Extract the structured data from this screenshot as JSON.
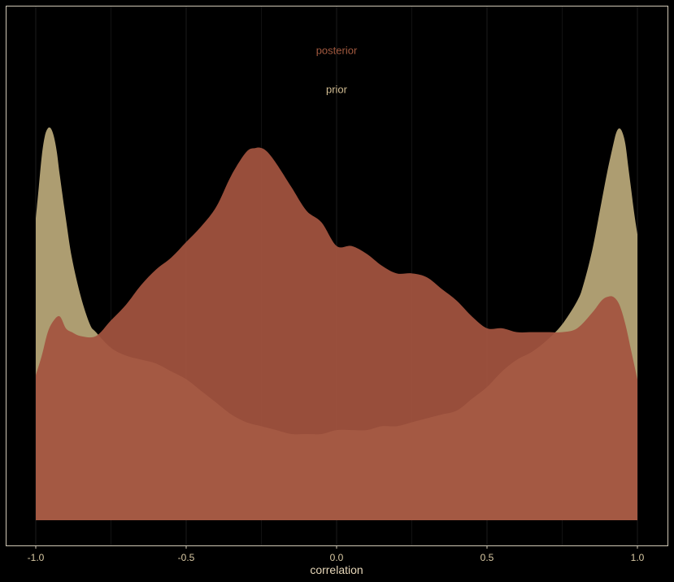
{
  "chart_data": {
    "type": "area",
    "xlabel": "correlation",
    "ylabel": "",
    "xlim": [
      -1.0,
      1.0
    ],
    "ylim": [
      0,
      1.0
    ],
    "x_ticks": [
      -1.0,
      -0.5,
      0.0,
      0.5,
      1.0
    ],
    "x_tick_labels": [
      "-1.0",
      "-0.5",
      "0.0",
      "0.5",
      "1.0"
    ],
    "grid_minor": [
      -0.75,
      -0.25,
      0.25,
      0.75
    ],
    "grid": true,
    "legend": "none",
    "annotations": [
      {
        "text": "posterior",
        "x": 0.0,
        "y": 1.19,
        "color": "#a1593f"
      },
      {
        "text": "prior",
        "x": 0.0,
        "y": 1.09,
        "color": "#d2bd93"
      }
    ],
    "series": [
      {
        "name": "prior",
        "color": "#b3a275",
        "opacity": 0.97,
        "x": [
          -1.0,
          -0.99,
          -0.98,
          -0.97,
          -0.96,
          -0.95,
          -0.94,
          -0.93,
          -0.92,
          -0.9,
          -0.88,
          -0.85,
          -0.82,
          -0.8,
          -0.75,
          -0.7,
          -0.65,
          -0.6,
          -0.55,
          -0.5,
          -0.45,
          -0.4,
          -0.35,
          -0.3,
          -0.25,
          -0.2,
          -0.15,
          -0.1,
          -0.05,
          0.0,
          0.05,
          0.1,
          0.15,
          0.2,
          0.25,
          0.3,
          0.35,
          0.4,
          0.45,
          0.5,
          0.55,
          0.6,
          0.65,
          0.7,
          0.75,
          0.8,
          0.82,
          0.85,
          0.88,
          0.9,
          0.92,
          0.93,
          0.94,
          0.95,
          0.96,
          0.97,
          0.98,
          0.99,
          1.0
        ],
        "values": [
          0.77,
          0.85,
          0.93,
          0.98,
          1.0,
          1.0,
          0.98,
          0.94,
          0.88,
          0.77,
          0.67,
          0.57,
          0.5,
          0.48,
          0.44,
          0.42,
          0.41,
          0.4,
          0.38,
          0.36,
          0.33,
          0.3,
          0.27,
          0.25,
          0.24,
          0.23,
          0.22,
          0.22,
          0.22,
          0.23,
          0.23,
          0.23,
          0.24,
          0.24,
          0.25,
          0.26,
          0.27,
          0.28,
          0.31,
          0.34,
          0.38,
          0.41,
          0.43,
          0.46,
          0.5,
          0.56,
          0.6,
          0.69,
          0.81,
          0.89,
          0.96,
          0.99,
          1.0,
          0.99,
          0.96,
          0.9,
          0.84,
          0.78,
          0.73
        ]
      },
      {
        "name": "posterior",
        "color": "#a4543f",
        "opacity": 0.93,
        "x": [
          -1.0,
          -0.98,
          -0.96,
          -0.94,
          -0.92,
          -0.9,
          -0.88,
          -0.85,
          -0.8,
          -0.75,
          -0.7,
          -0.65,
          -0.6,
          -0.55,
          -0.5,
          -0.45,
          -0.4,
          -0.35,
          -0.3,
          -0.27,
          -0.25,
          -0.23,
          -0.2,
          -0.15,
          -0.1,
          -0.05,
          0.0,
          0.05,
          0.1,
          0.15,
          0.2,
          0.25,
          0.3,
          0.35,
          0.4,
          0.45,
          0.5,
          0.55,
          0.6,
          0.65,
          0.7,
          0.75,
          0.8,
          0.85,
          0.88,
          0.9,
          0.92,
          0.94,
          0.96,
          0.98,
          1.0
        ],
        "values": [
          0.37,
          0.42,
          0.48,
          0.51,
          0.52,
          0.49,
          0.48,
          0.47,
          0.47,
          0.51,
          0.55,
          0.6,
          0.64,
          0.67,
          0.71,
          0.75,
          0.8,
          0.88,
          0.94,
          0.95,
          0.95,
          0.94,
          0.91,
          0.85,
          0.79,
          0.76,
          0.7,
          0.7,
          0.68,
          0.65,
          0.63,
          0.63,
          0.62,
          0.59,
          0.56,
          0.52,
          0.49,
          0.49,
          0.48,
          0.48,
          0.48,
          0.48,
          0.49,
          0.53,
          0.56,
          0.57,
          0.57,
          0.55,
          0.5,
          0.43,
          0.36
        ]
      }
    ]
  }
}
